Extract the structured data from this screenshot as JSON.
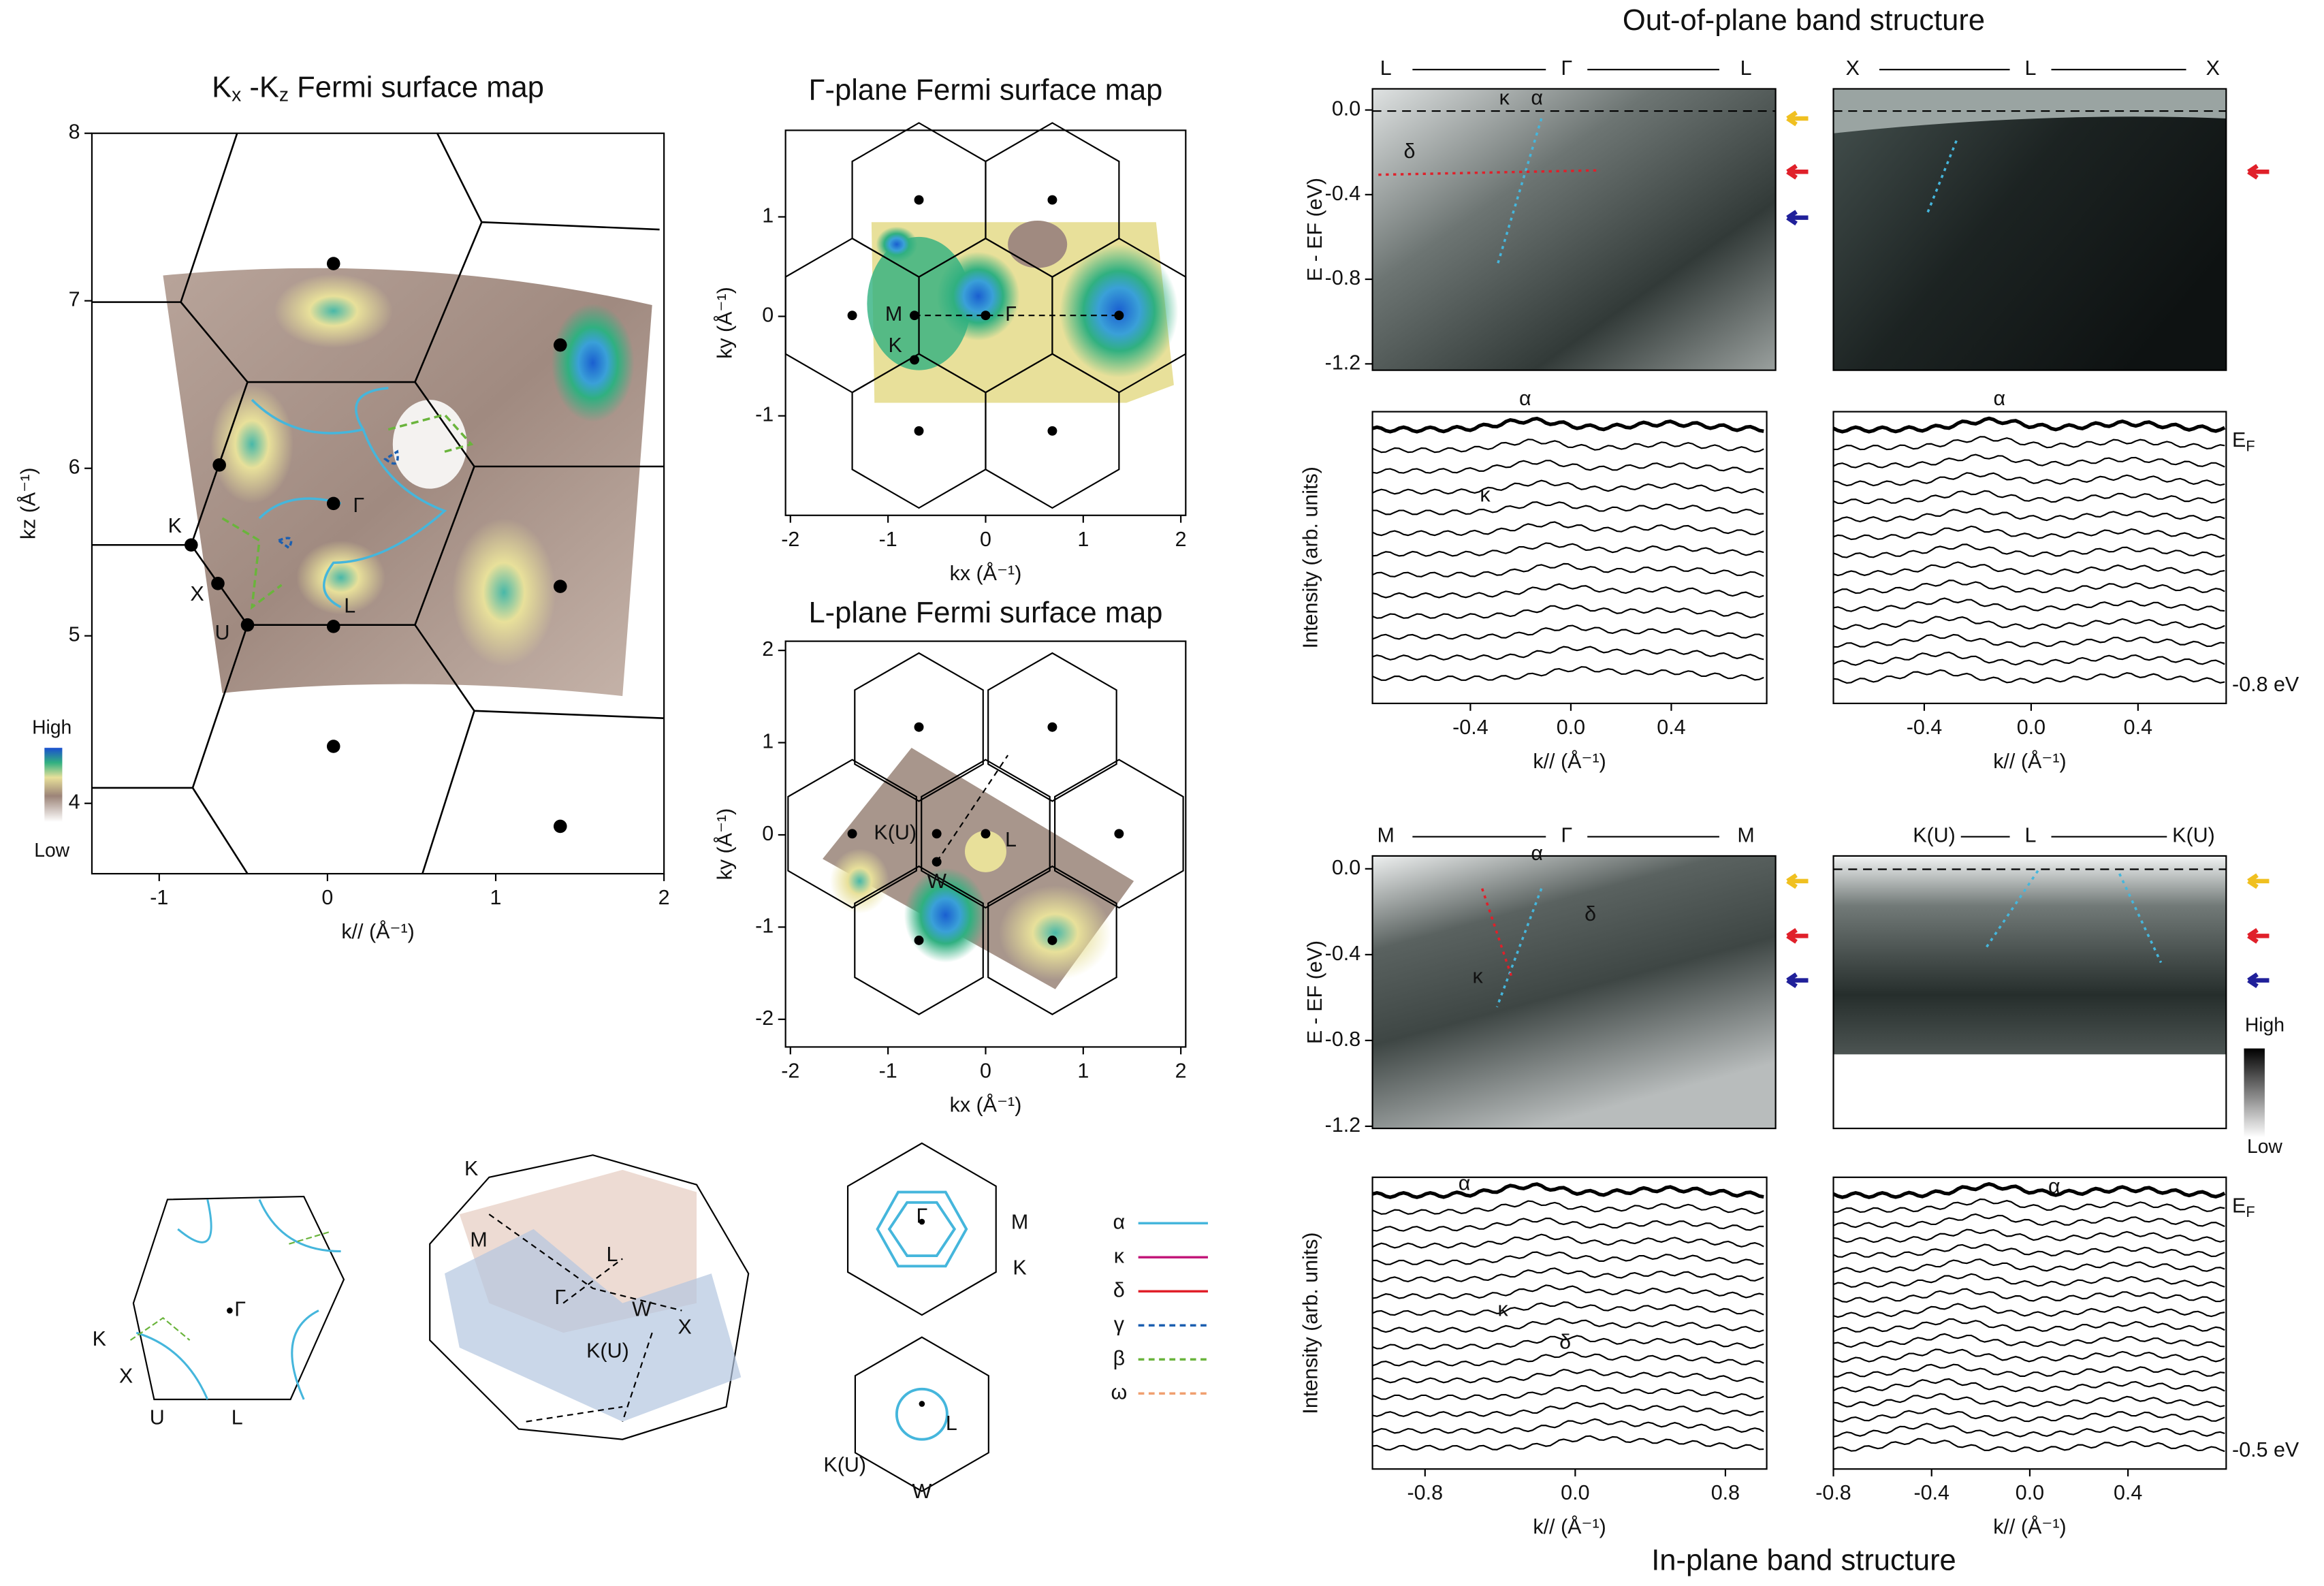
{
  "kxkz_map": {
    "title": {
      "k1": "K",
      "s1": "x",
      "k2": " -K",
      "s2": "z",
      "rest": "  Fermi surface map"
    },
    "xlabel": "k// (Å⁻¹)",
    "ylabel": "kz (Å⁻¹)",
    "xlim": [
      -1.4,
      2
    ],
    "ylim": [
      3.58,
      8
    ],
    "xticks": [
      -1,
      0,
      1,
      2
    ],
    "yticks": [
      4,
      5,
      6,
      7,
      8
    ],
    "points": [
      "K",
      "X",
      "U",
      "L",
      "Γ"
    ],
    "colorbar": {
      "high": "High",
      "low": "Low"
    }
  },
  "gamma_map": {
    "title": "Γ-plane Fermi surface map",
    "xlabel": "kx (Å⁻¹)",
    "ylabel": "ky (Å⁻¹)",
    "xlim": [
      -2.05,
      2.05
    ],
    "ylim": [
      -2.0,
      1.87
    ],
    "xticks": [
      -2,
      -1,
      0,
      1,
      2
    ],
    "yticks": [
      -1,
      0,
      1
    ],
    "points": [
      "M",
      "Γ",
      "K"
    ]
  },
  "l_map": {
    "title": "L-plane Fermi surface map",
    "xlabel": "kx (Å⁻¹)",
    "ylabel": "ky (Å⁻¹)",
    "xlim": [
      -2.05,
      2.05
    ],
    "ylim": [
      -2.3,
      2.1
    ],
    "xticks": [
      -2,
      -1,
      0,
      1,
      2
    ],
    "yticks": [
      -2,
      -1,
      0,
      1,
      2
    ],
    "points": [
      "K(U)",
      "L",
      "W"
    ]
  },
  "out_of_plane": {
    "title": "Out-of-plane band structure",
    "left_image": {
      "path": [
        "L",
        "Γ",
        "L"
      ],
      "ylabel": "E - EF (eV)",
      "ylim": [
        -1.23,
        0.1
      ],
      "yticks": [
        -1.2,
        -0.8,
        -0.4,
        {
          "value": 0,
          "label": "0.0"
        }
      ],
      "labels": [
        "κ",
        "α",
        "δ"
      ]
    },
    "right_image": {
      "path": [
        "X",
        "L",
        "X"
      ]
    },
    "left_curves": {
      "ylabel": "Intensity (arb. units)",
      "xlabel": "k// (Å⁻¹)",
      "xlim": [
        -0.79,
        0.78
      ],
      "xticks": [
        -0.4,
        {
          "value": 0,
          "label": "0.0"
        },
        0.4
      ],
      "labels": [
        "α",
        "κ"
      ]
    },
    "right_curves": {
      "xlabel": "k// (Å⁻¹)",
      "xlim": [
        -0.74,
        0.73
      ],
      "xticks": [
        -0.4,
        {
          "value": 0,
          "label": "0.0"
        },
        0.4
      ],
      "labels": [
        "α"
      ],
      "ef": {
        "e": "E",
        "f": "F"
      },
      "bottom": "-0.8 eV"
    }
  },
  "in_plane": {
    "title": "In-plane band structure",
    "left_image": {
      "path": [
        "M",
        "Γ",
        "M"
      ],
      "ylabel": "E - EF (eV)",
      "ylim": [
        -1.21,
        0.06
      ],
      "yticks": [
        -1.2,
        -0.8,
        -0.4,
        {
          "value": 0,
          "label": "0.0"
        }
      ],
      "labels": [
        "α",
        "δ",
        "κ"
      ]
    },
    "right_image": {
      "path": [
        "K(U)",
        "L",
        "K(U)"
      ],
      "colorbar": {
        "high": "High",
        "low": "Low"
      }
    },
    "left_curves": {
      "ylabel": "Intensity (arb. units)",
      "xlabel": "k// (Å⁻¹)",
      "xlim": [
        -1.08,
        1.02
      ],
      "xticks": [
        -0.8,
        {
          "value": 0,
          "label": "0.0"
        },
        0.8
      ],
      "labels": [
        "α",
        "κ",
        "δ"
      ]
    },
    "right_curves": {
      "xlabel": "k// (Å⁻¹)",
      "xlim": [
        -0.8,
        0.8
      ],
      "xticks": [
        -0.8,
        -0.4,
        {
          "value": 0,
          "label": "0.0"
        },
        0.4
      ],
      "labels": [
        "α"
      ],
      "ef": {
        "e": "E",
        "f": "F"
      },
      "bottom": "-0.5 eV"
    }
  },
  "schematics": {
    "section": [
      "K",
      "X",
      "U",
      "L",
      "Γ"
    ],
    "brillouin_zone": [
      "K",
      "M",
      "L",
      "Γ",
      "W",
      "K(U)",
      "X"
    ],
    "gamma_hex": [
      "Γ",
      "M",
      "K"
    ],
    "l_hex": [
      "L",
      "K(U)",
      "W"
    ],
    "legend": [
      {
        "name": "α",
        "color": "#45b6dc",
        "dashed": false
      },
      {
        "name": "κ",
        "color": "#c2187a",
        "dashed": false
      },
      {
        "name": "δ",
        "color": "#e0202a",
        "dashed": false
      },
      {
        "name": "γ",
        "color": "#1c5fb0",
        "dashed": true
      },
      {
        "name": "β",
        "color": "#6ab43c",
        "dashed": true
      },
      {
        "name": "ω",
        "color": "#f0a070",
        "dashed": true
      }
    ]
  }
}
